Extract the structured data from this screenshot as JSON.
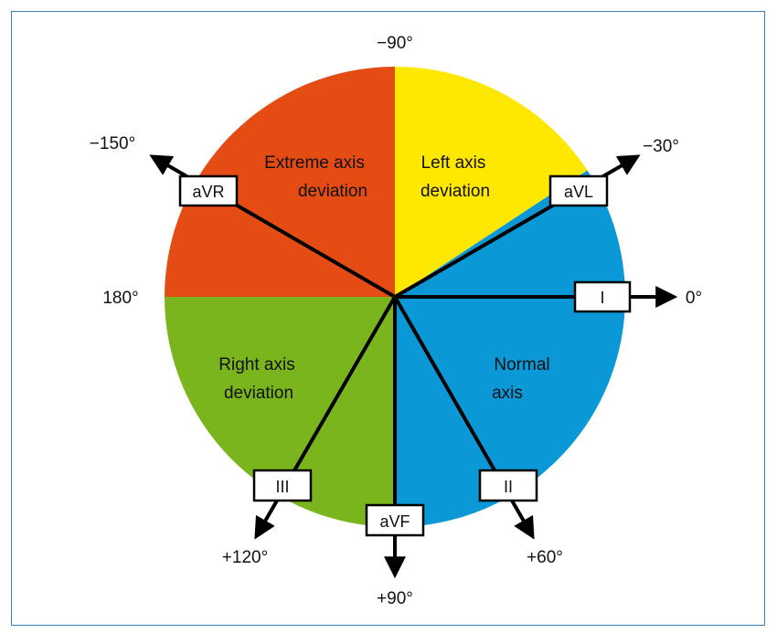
{
  "regions": {
    "extreme": {
      "line1": "Extreme axis",
      "line2": "deviation",
      "color": "#e44c14"
    },
    "left": {
      "line1": "Left axis",
      "line2": "deviation",
      "color": "#ffe800"
    },
    "normal": {
      "line1": "Normal",
      "line2": "axis",
      "color": "#0a99d6"
    },
    "right": {
      "line1": "Right axis",
      "line2": "deviation",
      "color": "#7ab51d"
    }
  },
  "leads": {
    "avr": "aVR",
    "avl": "aVL",
    "i": "I",
    "ii": "II",
    "iii": "III",
    "avf": "aVF"
  },
  "angles": {
    "minus90": "−90°",
    "minus150": "−150°",
    "minus30": "−30°",
    "deg180": "180°",
    "deg0": "0°",
    "plus120": "+120°",
    "plus60": "+60°",
    "plus90": "+90°"
  }
}
